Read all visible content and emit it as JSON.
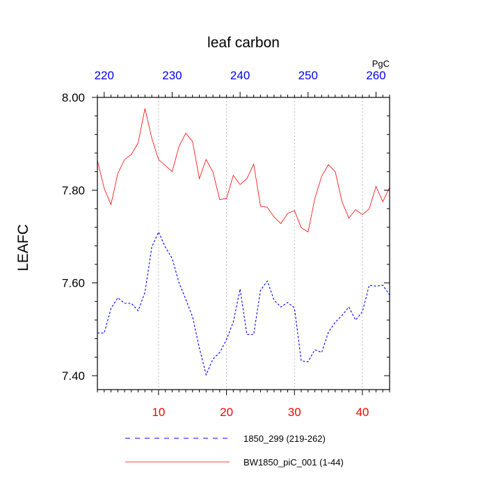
{
  "chart_data": {
    "type": "line",
    "title": "leaf carbon",
    "units_label": "PgC",
    "ylabel": "LEAFC",
    "xlim": [
      1,
      44
    ],
    "ylim": [
      7.37,
      8.0
    ],
    "x_ticks": [
      10,
      20,
      30,
      40
    ],
    "x_tick_labels": [
      "10",
      "20",
      "30",
      "40"
    ],
    "x_tick_color": "#ff0000",
    "top_x_ticks": [
      220,
      230,
      240,
      250,
      260
    ],
    "top_x_tick_labels": [
      "220",
      "230",
      "240",
      "250",
      "260"
    ],
    "top_x_offset": 218,
    "top_x_tick_color": "#0000ff",
    "y_ticks": [
      7.4,
      7.6,
      7.8,
      8.0
    ],
    "y_tick_labels": [
      "7.40",
      "7.60",
      "7.80",
      "8.00"
    ],
    "grid": "vertical dotted at major x ticks",
    "legend_position": "bottom",
    "series": [
      {
        "name": "1850_299 (219-262)",
        "color": "#0000ff",
        "style": "dashed",
        "x": [
          1,
          2,
          3,
          4,
          5,
          6,
          7,
          8,
          9,
          10,
          11,
          12,
          13,
          14,
          15,
          16,
          17,
          18,
          19,
          20,
          21,
          22,
          23,
          24,
          25,
          26,
          27,
          28,
          29,
          30,
          31,
          32,
          33,
          34,
          35,
          36,
          37,
          38,
          39,
          40,
          41,
          42,
          43,
          44
        ],
        "values": [
          7.492,
          7.492,
          7.545,
          7.568,
          7.556,
          7.556,
          7.54,
          7.58,
          7.677,
          7.71,
          7.677,
          7.653,
          7.601,
          7.565,
          7.527,
          7.46,
          7.402,
          7.436,
          7.45,
          7.478,
          7.516,
          7.587,
          7.489,
          7.489,
          7.584,
          7.604,
          7.563,
          7.548,
          7.558,
          7.546,
          7.432,
          7.43,
          7.456,
          7.45,
          7.494,
          7.515,
          7.53,
          7.548,
          7.52,
          7.538,
          7.595,
          7.593,
          7.595,
          7.574
        ]
      },
      {
        "name": "BW1850_piC_001 (1-44)",
        "color": "#ff0000",
        "style": "solid",
        "x": [
          1,
          2,
          3,
          4,
          5,
          6,
          7,
          8,
          9,
          10,
          11,
          12,
          13,
          14,
          15,
          16,
          17,
          18,
          19,
          20,
          21,
          22,
          23,
          24,
          25,
          26,
          27,
          28,
          29,
          30,
          31,
          32,
          33,
          34,
          35,
          36,
          37,
          38,
          39,
          40,
          41,
          42,
          43,
          44
        ],
        "values": [
          7.864,
          7.804,
          7.769,
          7.836,
          7.866,
          7.877,
          7.902,
          7.976,
          7.912,
          7.866,
          7.853,
          7.84,
          7.894,
          7.923,
          7.905,
          7.825,
          7.866,
          7.839,
          7.78,
          7.782,
          7.832,
          7.812,
          7.825,
          7.856,
          7.766,
          7.763,
          7.742,
          7.728,
          7.75,
          7.756,
          7.719,
          7.71,
          7.782,
          7.83,
          7.855,
          7.84,
          7.775,
          7.74,
          7.758,
          7.747,
          7.76,
          7.808,
          7.775,
          7.806
        ]
      }
    ]
  }
}
